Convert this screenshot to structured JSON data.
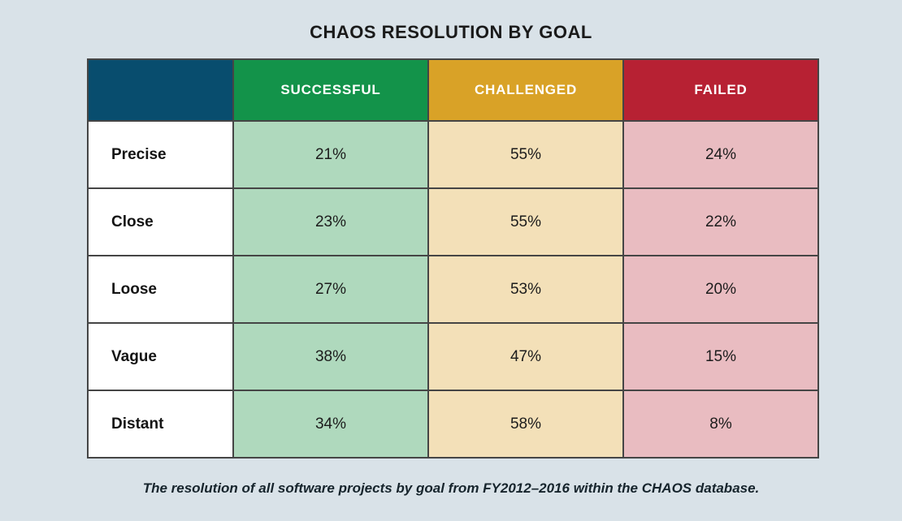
{
  "title": "CHAOS RESOLUTION BY GOAL",
  "caption": "The resolution of all software projects by goal from FY2012–2016 within the CHAOS database.",
  "colors": {
    "background": "#D9E2E8",
    "header_corner_navy": "#084D6E",
    "header_successful_green": "#13934A",
    "header_challenged_gold": "#D9A227",
    "header_failed_red": "#B72133",
    "cell_successful_light_green": "#AFD9BD",
    "cell_challenged_light_tan": "#F3E0B8",
    "cell_failed_light_pink": "#E9BCC1",
    "grid_border": "#454545",
    "header_text": "#FFFFFF",
    "body_text": "#1C1C1C"
  },
  "chart_data": {
    "type": "table",
    "title": "CHAOS RESOLUTION BY GOAL",
    "caption": "The resolution of all software projects by goal from FY2012–2016 within the CHAOS database.",
    "columns": [
      "SUCCESSFUL",
      "CHALLENGED",
      "FAILED"
    ],
    "row_labels": [
      "Precise",
      "Close",
      "Loose",
      "Vague",
      "Distant"
    ],
    "rows": [
      {
        "label": "Precise",
        "values": [
          "21%",
          "55%",
          "24%"
        ]
      },
      {
        "label": "Close",
        "values": [
          "23%",
          "55%",
          "22%"
        ]
      },
      {
        "label": "Loose",
        "values": [
          "27%",
          "53%",
          "20%"
        ]
      },
      {
        "label": "Vague",
        "values": [
          "38%",
          "47%",
          "15%"
        ]
      },
      {
        "label": "Distant",
        "values": [
          "34%",
          "58%",
          "8%"
        ]
      }
    ],
    "series": [
      {
        "name": "SUCCESSFUL",
        "values": [
          21,
          23,
          27,
          38,
          34
        ]
      },
      {
        "name": "CHALLENGED",
        "values": [
          55,
          55,
          53,
          47,
          58
        ]
      },
      {
        "name": "FAILED",
        "values": [
          24,
          22,
          20,
          15,
          8
        ]
      }
    ],
    "value_unit": "%"
  }
}
